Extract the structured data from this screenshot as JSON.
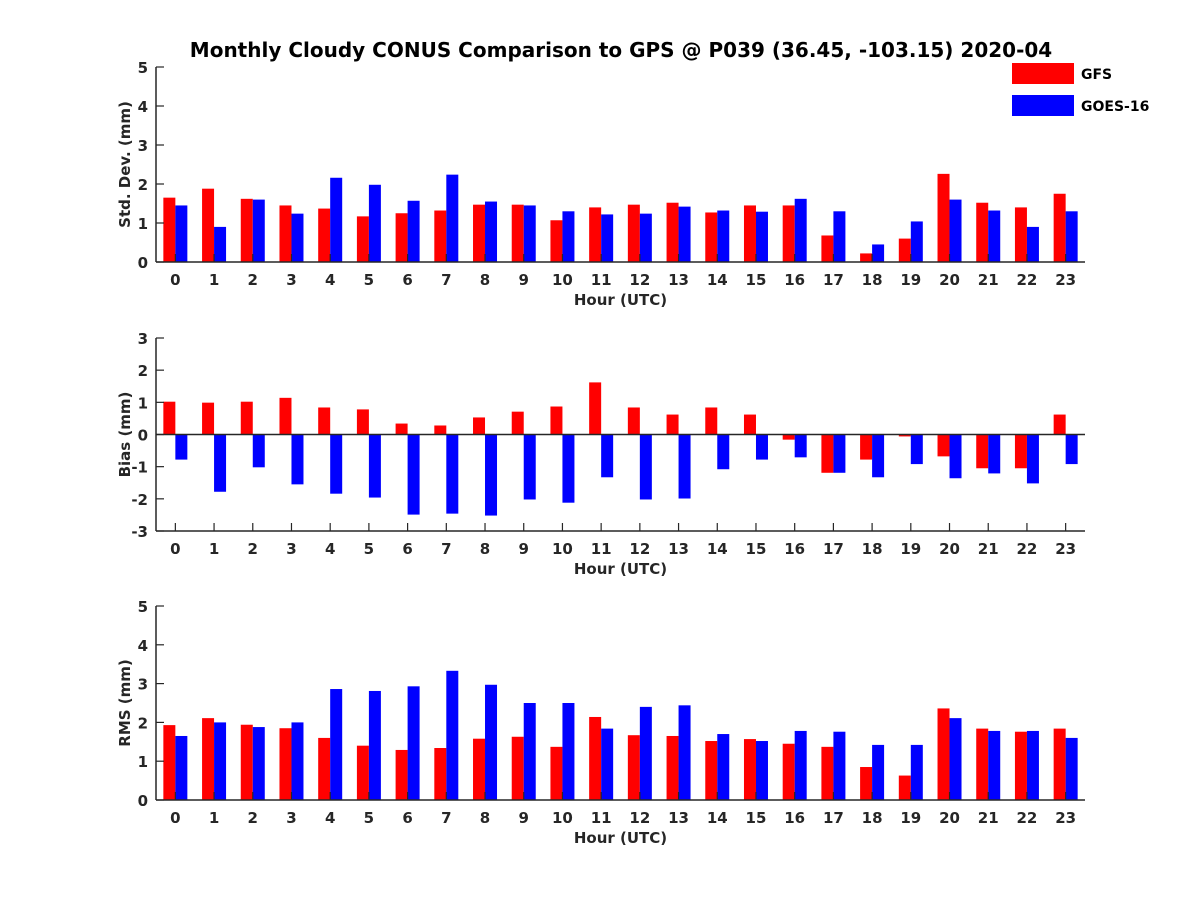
{
  "figure": {
    "title": "Monthly Cloudy CONUS Comparison to GPS @ P039 (36.45, -103.15) 2020-04"
  },
  "legend": {
    "placement": "top-right",
    "items": [
      {
        "name": "GFS",
        "color": "#ff0000"
      },
      {
        "name": "GOES-16",
        "color": "#0000ff"
      }
    ]
  },
  "chart_data": [
    {
      "type": "bar",
      "xlabel": "Hour (UTC)",
      "ylabel": "Std. Dev. (mm)",
      "ylim": [
        0,
        5
      ],
      "yticks": [
        0,
        1,
        2,
        3,
        4,
        5
      ],
      "categories": [
        "0",
        "1",
        "2",
        "3",
        "4",
        "5",
        "6",
        "7",
        "8",
        "9",
        "10",
        "11",
        "12",
        "13",
        "14",
        "15",
        "16",
        "17",
        "18",
        "19",
        "20",
        "21",
        "22",
        "23"
      ],
      "series": [
        {
          "name": "GFS",
          "color": "#ff0000",
          "values": [
            1.65,
            1.88,
            1.62,
            1.45,
            1.37,
            1.17,
            1.25,
            1.32,
            1.47,
            1.47,
            1.07,
            1.4,
            1.47,
            1.52,
            1.27,
            1.45,
            1.45,
            0.68,
            0.22,
            0.6,
            2.26,
            1.52,
            1.4,
            1.75
          ]
        },
        {
          "name": "GOES-16",
          "color": "#0000ff",
          "values": [
            1.45,
            0.9,
            1.6,
            1.24,
            2.16,
            1.98,
            1.57,
            2.24,
            1.55,
            1.45,
            1.3,
            1.22,
            1.24,
            1.42,
            1.32,
            1.29,
            1.62,
            1.3,
            0.45,
            1.04,
            1.6,
            1.32,
            0.9,
            1.3
          ]
        }
      ]
    },
    {
      "type": "bar",
      "xlabel": "Hour (UTC)",
      "ylabel": "Bias (mm)",
      "ylim": [
        -3,
        3
      ],
      "yticks": [
        -3,
        -2,
        -1,
        0,
        1,
        2,
        3
      ],
      "categories": [
        "0",
        "1",
        "2",
        "3",
        "4",
        "5",
        "6",
        "7",
        "8",
        "9",
        "10",
        "11",
        "12",
        "13",
        "14",
        "15",
        "16",
        "17",
        "18",
        "19",
        "20",
        "21",
        "22",
        "23"
      ],
      "series": [
        {
          "name": "GFS",
          "color": "#ff0000",
          "values": [
            1.02,
            0.99,
            1.02,
            1.14,
            0.84,
            0.78,
            0.34,
            0.28,
            0.53,
            0.71,
            0.87,
            1.62,
            0.84,
            0.62,
            0.84,
            0.62,
            -0.16,
            -1.19,
            -0.78,
            -0.06,
            -0.68,
            -1.05,
            -1.05,
            0.62
          ]
        },
        {
          "name": "GOES-16",
          "color": "#0000ff",
          "values": [
            -0.78,
            -1.78,
            -1.02,
            -1.55,
            -1.84,
            -1.96,
            -2.49,
            -2.46,
            -2.52,
            -2.02,
            -2.12,
            -1.33,
            -2.02,
            -1.99,
            -1.08,
            -0.78,
            -0.71,
            -1.19,
            -1.33,
            -0.92,
            -1.36,
            -1.21,
            -1.52,
            -0.92
          ]
        }
      ]
    },
    {
      "type": "bar",
      "xlabel": "Hour (UTC)",
      "ylabel": "RMS (mm)",
      "ylim": [
        0,
        5
      ],
      "yticks": [
        0,
        1,
        2,
        3,
        4,
        5
      ],
      "categories": [
        "0",
        "1",
        "2",
        "3",
        "4",
        "5",
        "6",
        "7",
        "8",
        "9",
        "10",
        "11",
        "12",
        "13",
        "14",
        "15",
        "16",
        "17",
        "18",
        "19",
        "20",
        "21",
        "22",
        "23"
      ],
      "series": [
        {
          "name": "GFS",
          "color": "#ff0000",
          "values": [
            1.93,
            2.11,
            1.94,
            1.85,
            1.6,
            1.4,
            1.29,
            1.34,
            1.58,
            1.63,
            1.37,
            2.14,
            1.67,
            1.65,
            1.52,
            1.57,
            1.45,
            1.37,
            0.85,
            0.63,
            2.36,
            1.84,
            1.76,
            1.84
          ]
        },
        {
          "name": "GOES-16",
          "color": "#0000ff",
          "values": [
            1.65,
            2.0,
            1.88,
            2.0,
            2.86,
            2.81,
            2.93,
            3.33,
            2.97,
            2.5,
            2.5,
            1.84,
            2.4,
            2.44,
            1.7,
            1.52,
            1.78,
            1.76,
            1.42,
            1.42,
            2.11,
            1.78,
            1.78,
            1.6
          ]
        }
      ]
    }
  ]
}
